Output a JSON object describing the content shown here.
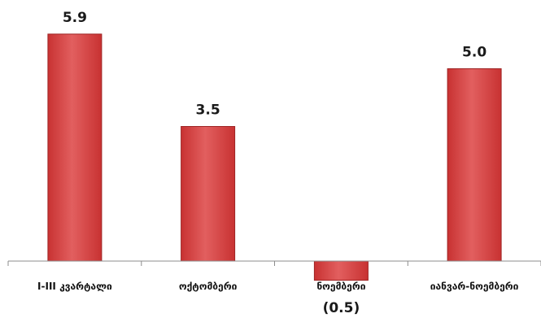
{
  "chart_data": {
    "type": "bar",
    "categories": [
      "I-III კვარტალი",
      "ოქტომბერი",
      "ნოემბერი",
      "იანვარ-ნოემბერი"
    ],
    "values": [
      5.9,
      3.5,
      -0.5,
      5.0
    ],
    "data_labels": [
      "5.9",
      "3.5",
      "(0.5)",
      "5.0"
    ],
    "title": "",
    "xlabel": "",
    "ylabel": "",
    "ylim": [
      -0.5,
      6.0
    ],
    "grid": false,
    "legend": "none",
    "colors": {
      "bar_fill_top": "#e25f5f",
      "bar_fill_bottom": "#c83232",
      "bar_edge": "#9e2424",
      "axis": "#8c8c8c"
    }
  }
}
